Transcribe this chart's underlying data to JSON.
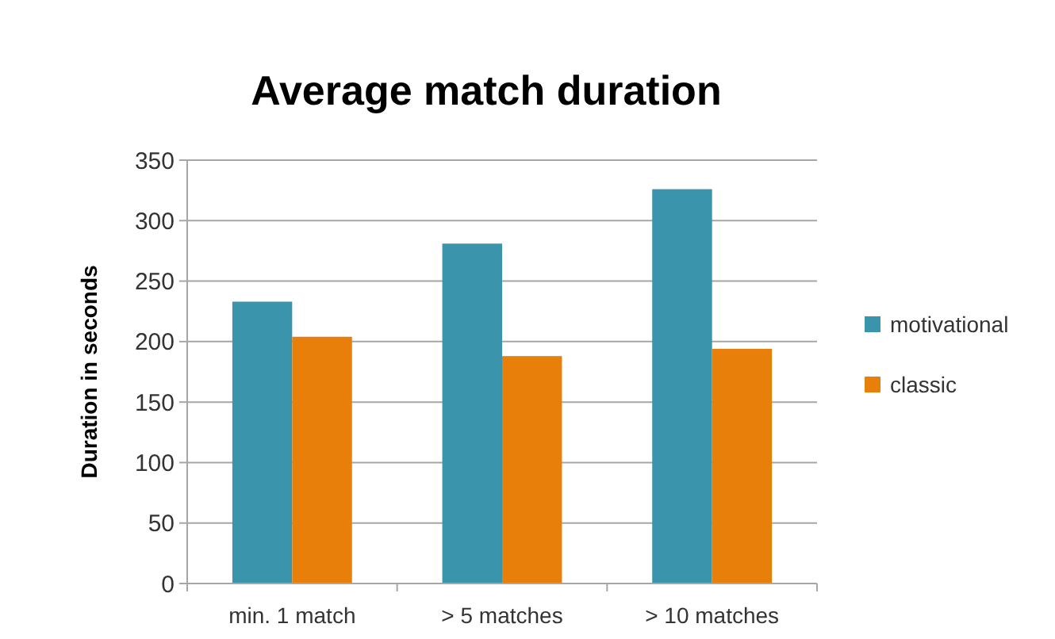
{
  "chart_data": {
    "type": "bar",
    "title": "Average match duration",
    "ylabel": "Duration in seconds",
    "categories": [
      "min. 1 match",
      "> 5 matches",
      "> 10 matches"
    ],
    "series": [
      {
        "name": "motivational",
        "color": "#3a94ab",
        "values": [
          233,
          281,
          326
        ]
      },
      {
        "name": "classic",
        "color": "#e87f0a",
        "values": [
          204,
          188,
          194
        ]
      }
    ],
    "ylim": [
      0,
      350
    ],
    "yticks": [
      0,
      50,
      100,
      150,
      200,
      250,
      300,
      350
    ],
    "grid": "y",
    "legend": "right"
  }
}
